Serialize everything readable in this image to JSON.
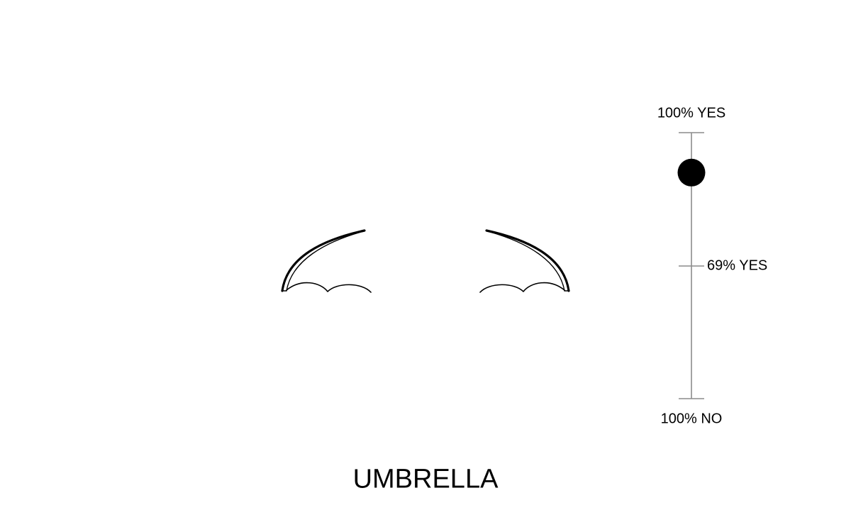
{
  "scale": {
    "top_label": "100% YES",
    "middle_label": "69% YES",
    "bottom_label": "100% NO",
    "marker_fraction_yes": 0.85
  },
  "stimulus": {
    "word": "UMBRELLA",
    "fragments": [
      "umbrella-left-fragment",
      "umbrella-right-fragment"
    ]
  },
  "colors": {
    "scale_line": "#8c8c8c",
    "marker": "#000000",
    "drawing": "#000000",
    "background": "#ffffff"
  }
}
